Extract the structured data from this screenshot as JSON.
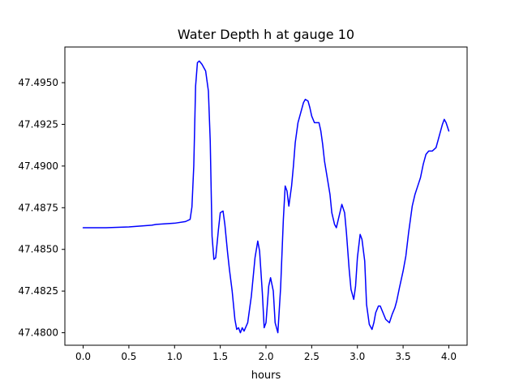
{
  "chart_data": {
    "type": "line",
    "title": "Water Depth h at gauge 10",
    "xlabel": "hours",
    "ylabel": "",
    "xlim": [
      -0.2,
      4.2
    ],
    "ylim": [
      47.47925,
      47.49714
    ],
    "x_ticks": [
      0.0,
      0.5,
      1.0,
      1.5,
      2.0,
      2.5,
      3.0,
      3.5,
      4.0
    ],
    "x_tick_labels": [
      "0.0",
      "0.5",
      "1.0",
      "1.5",
      "2.0",
      "2.5",
      "3.0",
      "3.5",
      "4.0"
    ],
    "y_ticks": [
      47.48,
      47.4825,
      47.485,
      47.4875,
      47.49,
      47.4925,
      47.495
    ],
    "y_tick_labels": [
      "47.4800",
      "47.4825",
      "47.4850",
      "47.4875",
      "47.4900",
      "47.4925",
      "47.4950"
    ],
    "grid": false,
    "series": [
      {
        "color": "#0000ff",
        "x": [
          0.0,
          0.25,
          0.5,
          0.75,
          0.8,
          1.0,
          1.12,
          1.17,
          1.19,
          1.21,
          1.23,
          1.25,
          1.27,
          1.3,
          1.34,
          1.37,
          1.39,
          1.41,
          1.43,
          1.45,
          1.48,
          1.5,
          1.53,
          1.55,
          1.58,
          1.6,
          1.63,
          1.66,
          1.68,
          1.7,
          1.72,
          1.74,
          1.76,
          1.8,
          1.84,
          1.88,
          1.91,
          1.93,
          1.96,
          1.98,
          2.0,
          2.03,
          2.05,
          2.08,
          2.1,
          2.13,
          2.16,
          2.19,
          2.21,
          2.23,
          2.25,
          2.28,
          2.3,
          2.32,
          2.35,
          2.38,
          2.41,
          2.43,
          2.46,
          2.48,
          2.5,
          2.53,
          2.55,
          2.58,
          2.6,
          2.62,
          2.64,
          2.67,
          2.7,
          2.72,
          2.75,
          2.77,
          2.8,
          2.83,
          2.86,
          2.88,
          2.91,
          2.93,
          2.96,
          2.98,
          3.0,
          3.03,
          3.05,
          3.08,
          3.1,
          3.13,
          3.16,
          3.18,
          3.2,
          3.23,
          3.25,
          3.28,
          3.31,
          3.35,
          3.38,
          3.41,
          3.43,
          3.46,
          3.5,
          3.53,
          3.56,
          3.6,
          3.63,
          3.66,
          3.69,
          3.72,
          3.75,
          3.78,
          3.82,
          3.86,
          3.88,
          3.9,
          3.93,
          3.95,
          3.97,
          4.0
        ],
        "y": [
          47.4863,
          47.4863,
          47.48635,
          47.48645,
          47.4865,
          47.48657,
          47.48667,
          47.4868,
          47.48755,
          47.49,
          47.4948,
          47.4962,
          47.4963,
          47.4961,
          47.4957,
          47.4945,
          47.4915,
          47.4858,
          47.4844,
          47.4845,
          47.4862,
          47.4872,
          47.4873,
          47.4865,
          47.4848,
          47.4838,
          47.4825,
          47.4808,
          47.4802,
          47.4803,
          47.48,
          47.4803,
          47.4801,
          47.4806,
          47.4822,
          47.4845,
          47.4855,
          47.4849,
          47.4824,
          47.4803,
          47.4806,
          47.4828,
          47.4833,
          47.4825,
          47.4806,
          47.48,
          47.4827,
          47.4868,
          47.4888,
          47.4885,
          47.4876,
          47.4888,
          47.49,
          47.4914,
          47.4926,
          47.4932,
          47.4938,
          47.494,
          47.4939,
          47.4935,
          47.493,
          47.4926,
          47.4926,
          47.4926,
          47.4921,
          47.4913,
          47.4903,
          47.4893,
          47.4883,
          47.4872,
          47.4865,
          47.4863,
          47.487,
          47.4877,
          47.4872,
          47.486,
          47.4838,
          47.4826,
          47.482,
          47.4828,
          47.4845,
          47.4859,
          47.4856,
          47.4843,
          47.4817,
          47.4805,
          47.4802,
          47.4806,
          47.4812,
          47.4816,
          47.4816,
          47.4812,
          47.4808,
          47.4806,
          47.4811,
          47.4815,
          47.4819,
          47.4827,
          47.4837,
          47.4846,
          47.486,
          47.4876,
          47.4883,
          47.4888,
          47.4893,
          47.4901,
          47.4907,
          47.4909,
          47.4909,
          47.4911,
          47.4915,
          47.4919,
          47.4925,
          47.4928,
          47.4926,
          47.4921
        ]
      }
    ]
  }
}
